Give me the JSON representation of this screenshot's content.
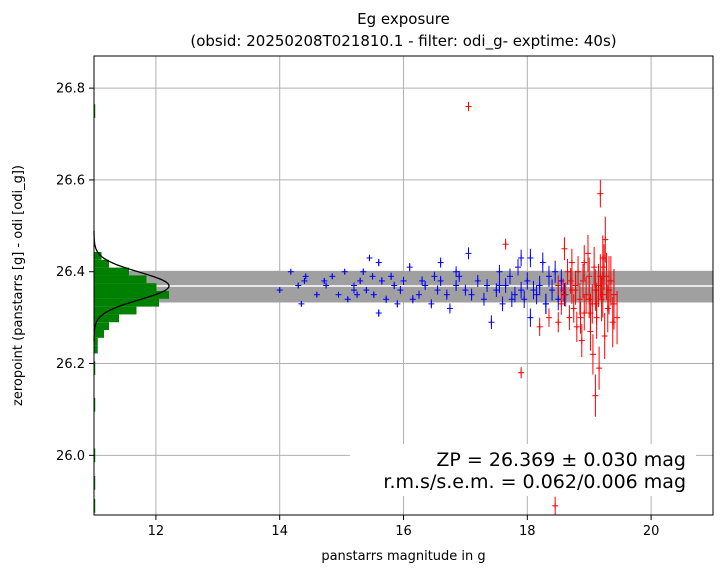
{
  "chart_data": {
    "type": "scatter",
    "title": "Eg exposure",
    "subtitle": "(obsid: 20250208T021810.1 - filter: odi_g- exptime: 40s)",
    "xlabel": "panstarrs magnitude in g",
    "ylabel": "zeropoint (panstarrs [g] - odi [odi_g])",
    "xlim": [
      11.0,
      21.0
    ],
    "ylim": [
      25.87,
      26.87
    ],
    "xticks": [
      12,
      14,
      16,
      18,
      20
    ],
    "yticks": [
      26.0,
      26.2,
      26.4,
      26.6,
      26.8
    ],
    "grid": true,
    "zeropoint": {
      "value": 26.369,
      "band_low": 26.333,
      "band_high": 26.402,
      "label": "ZP = 26.369 ± 0.030 mag",
      "stats_label": "r.m.s/s.e.m. = 0.062/0.006 mag"
    },
    "colors": {
      "used": "#0000ff",
      "rejected": "#ff0000",
      "histogram": "#008000",
      "fit": "#000000",
      "band": "#a0a0a0",
      "zp_line": "#ffffff",
      "grid": "#b0b0b0"
    },
    "histogram": {
      "bin_edges": [
        26.222,
        26.239,
        26.256,
        26.273,
        26.29,
        26.307,
        26.324,
        26.341,
        26.358,
        26.375,
        26.392,
        26.409,
        26.426,
        26.443
      ],
      "counts": [
        3,
        3,
        8,
        12,
        20,
        34,
        52,
        60,
        50,
        42,
        28,
        12,
        6
      ],
      "outlier_bins": [
        {
          "y": 26.75,
          "count": 1
        },
        {
          "y": 26.19,
          "count": 1
        },
        {
          "y": 26.11,
          "count": 1
        },
        {
          "y": 26.0,
          "count": 1
        },
        {
          "y": 25.94,
          "count": 1
        },
        {
          "y": 25.89,
          "count": 1
        }
      ]
    },
    "gaussian_fit": {
      "mean": 26.369,
      "sigma": 0.03,
      "peak_count": 60
    },
    "series": [
      {
        "name": "",
        "color": "#0000ff",
        "x": [
          14.0,
          14.18,
          14.3,
          14.35,
          14.42,
          14.6,
          14.72,
          14.85,
          14.95,
          15.05,
          15.1,
          15.2,
          15.25,
          15.3,
          15.35,
          15.4,
          15.45,
          15.5,
          15.52,
          15.6,
          15.65,
          15.72,
          15.8,
          15.85,
          15.9,
          15.95,
          16.0,
          16.1,
          16.15,
          16.25,
          16.3,
          16.35,
          16.45,
          16.5,
          16.55,
          16.6,
          16.7,
          16.75,
          16.85,
          16.9,
          17.0,
          17.05,
          17.1,
          17.2,
          17.3,
          17.35,
          17.42,
          17.5,
          17.55,
          17.6,
          17.65,
          17.72,
          17.8,
          17.85,
          17.9,
          17.95,
          18.0,
          18.05,
          18.1,
          18.15,
          18.2,
          18.25,
          18.3,
          18.35,
          18.4,
          18.45,
          18.5,
          18.55,
          18.6,
          14.75,
          15.6,
          16.85,
          17.55,
          18.05,
          17.9,
          18.3,
          14.4,
          15.2,
          16.6,
          17.75
        ],
        "y": [
          26.36,
          26.4,
          26.37,
          26.33,
          26.39,
          26.35,
          26.38,
          26.39,
          26.35,
          26.4,
          26.34,
          26.37,
          26.35,
          26.38,
          26.4,
          26.36,
          26.43,
          26.39,
          26.35,
          26.42,
          26.38,
          26.34,
          26.39,
          26.37,
          26.33,
          26.36,
          26.38,
          26.41,
          26.34,
          26.35,
          26.38,
          26.37,
          26.33,
          26.39,
          26.36,
          26.38,
          26.35,
          26.32,
          26.37,
          26.39,
          26.36,
          26.44,
          26.35,
          26.38,
          26.34,
          26.37,
          26.29,
          26.36,
          26.4,
          26.33,
          26.37,
          26.39,
          26.35,
          26.41,
          26.36,
          26.34,
          26.38,
          26.43,
          26.36,
          26.35,
          26.37,
          26.42,
          26.33,
          26.39,
          26.36,
          26.4,
          26.34,
          26.38,
          26.35,
          26.37,
          26.31,
          26.4,
          26.37,
          26.3,
          26.43,
          26.33,
          26.38,
          26.36,
          26.42,
          26.34
        ],
        "yerr": [
          0.005,
          0.005,
          0.005,
          0.005,
          0.005,
          0.006,
          0.006,
          0.006,
          0.006,
          0.006,
          0.006,
          0.006,
          0.007,
          0.007,
          0.007,
          0.007,
          0.007,
          0.007,
          0.007,
          0.008,
          0.008,
          0.008,
          0.008,
          0.008,
          0.008,
          0.009,
          0.009,
          0.009,
          0.009,
          0.009,
          0.01,
          0.01,
          0.01,
          0.01,
          0.01,
          0.011,
          0.011,
          0.011,
          0.012,
          0.012,
          0.012,
          0.013,
          0.013,
          0.013,
          0.014,
          0.014,
          0.015,
          0.015,
          0.015,
          0.016,
          0.016,
          0.017,
          0.017,
          0.018,
          0.018,
          0.019,
          0.019,
          0.02,
          0.02,
          0.021,
          0.021,
          0.022,
          0.022,
          0.023,
          0.023,
          0.024,
          0.024,
          0.025,
          0.025,
          0.006,
          0.008,
          0.012,
          0.016,
          0.02,
          0.018,
          0.022,
          0.005,
          0.007,
          0.011,
          0.017
        ]
      },
      {
        "name": "",
        "color": "#ff0000",
        "x": [
          17.05,
          17.65,
          17.9,
          18.2,
          18.35,
          18.45,
          18.5,
          18.55,
          18.6,
          18.62,
          18.68,
          18.7,
          18.72,
          18.75,
          18.78,
          18.8,
          18.82,
          18.85,
          18.88,
          18.9,
          18.92,
          18.95,
          18.98,
          19.0,
          19.02,
          19.05,
          19.08,
          19.1,
          19.12,
          19.15,
          19.18,
          19.2,
          19.22,
          19.25,
          19.28,
          19.3,
          19.32,
          19.35,
          19.38,
          19.4,
          19.45,
          18.65,
          18.78,
          18.92,
          19.02,
          19.12,
          19.22,
          19.32,
          18.58,
          19.06,
          19.16,
          19.26,
          18.86,
          19.0,
          18.5,
          19.1,
          19.24,
          19.4,
          18.72,
          19.18
        ],
        "y": [
          26.76,
          26.46,
          26.18,
          26.28,
          26.3,
          25.89,
          26.37,
          26.33,
          26.45,
          26.35,
          26.3,
          26.38,
          26.42,
          26.32,
          26.36,
          26.28,
          26.4,
          26.34,
          26.25,
          26.38,
          26.31,
          26.35,
          26.44,
          26.39,
          26.27,
          26.33,
          26.41,
          26.36,
          26.3,
          26.37,
          26.57,
          26.34,
          26.43,
          26.26,
          26.39,
          26.32,
          26.36,
          26.38,
          26.29,
          26.35,
          26.3,
          26.4,
          26.37,
          26.42,
          26.31,
          26.33,
          26.35,
          26.38,
          26.36,
          26.22,
          26.19,
          26.47,
          26.3,
          26.34,
          26.29,
          26.13,
          26.41,
          26.33,
          26.36,
          26.39
        ],
        "yerr": [
          0.01,
          0.012,
          0.012,
          0.02,
          0.02,
          0.02,
          0.022,
          0.024,
          0.025,
          0.026,
          0.027,
          0.028,
          0.03,
          0.031,
          0.032,
          0.033,
          0.034,
          0.035,
          0.036,
          0.037,
          0.038,
          0.039,
          0.04,
          0.041,
          0.042,
          0.043,
          0.044,
          0.045,
          0.046,
          0.047,
          0.03,
          0.048,
          0.049,
          0.05,
          0.051,
          0.052,
          0.053,
          0.054,
          0.055,
          0.056,
          0.058,
          0.028,
          0.032,
          0.038,
          0.042,
          0.046,
          0.05,
          0.054,
          0.025,
          0.044,
          0.047,
          0.05,
          0.035,
          0.041,
          0.022,
          0.046,
          0.05,
          0.056,
          0.03,
          0.048
        ]
      }
    ]
  }
}
